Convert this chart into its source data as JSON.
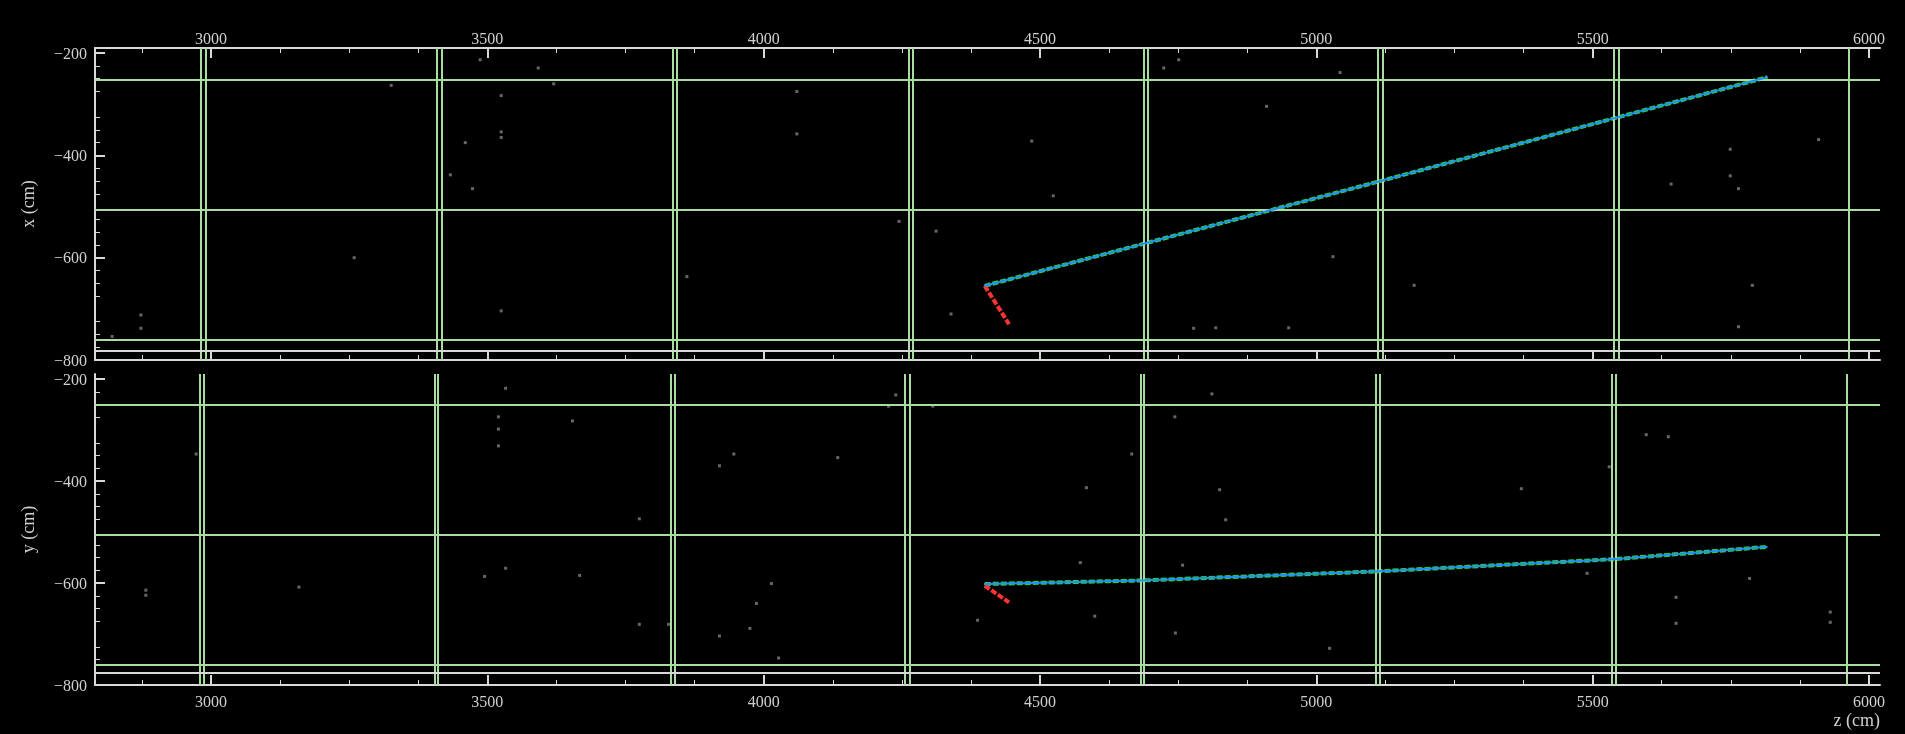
{
  "chart_data": [
    {
      "type": "line",
      "ylabel": "x (cm)",
      "xlim": [
        2790,
        6020
      ],
      "xticks": [
        3000,
        3500,
        4000,
        4500,
        5000,
        5500,
        6000
      ],
      "x2lim": [
        2790,
        6020
      ],
      "x2ticks": [
        3000,
        3500,
        4000,
        4500,
        5000,
        5500,
        6000
      ],
      "ylim": [
        -800,
        -190
      ],
      "yticks": [
        -200,
        -400,
        -600,
        -800
      ],
      "tick_labels": "y",
      "grid": false,
      "ref_lines": [
        {
          "axis": "x",
          "value": 2982,
          "color": "#a8dca0"
        },
        {
          "axis": "x",
          "value": 2991,
          "color": "#a8dca0"
        },
        {
          "axis": "x",
          "value": 3409,
          "color": "#a8dca0"
        },
        {
          "axis": "x",
          "value": 3417,
          "color": "#a8dca0"
        },
        {
          "axis": "x",
          "value": 3835,
          "color": "#a8dca0"
        },
        {
          "axis": "x",
          "value": 3843,
          "color": "#a8dca0"
        },
        {
          "axis": "x",
          "value": 4263,
          "color": "#a8dca0"
        },
        {
          "axis": "x",
          "value": 4269,
          "color": "#a8dca0"
        },
        {
          "axis": "x",
          "value": 4687,
          "color": "#a8dca0"
        },
        {
          "axis": "x",
          "value": 4695,
          "color": "#a8dca0"
        },
        {
          "axis": "x",
          "value": 5112,
          "color": "#a8dca0"
        },
        {
          "axis": "x",
          "value": 5120,
          "color": "#a8dca0"
        },
        {
          "axis": "x",
          "value": 5539,
          "color": "#a8dca0"
        },
        {
          "axis": "x",
          "value": 5547,
          "color": "#a8dca0"
        },
        {
          "axis": "x",
          "value": 5963,
          "color": "#a8dca0"
        },
        {
          "axis": "y",
          "value": -252,
          "color": "#a8dca0"
        },
        {
          "axis": "y",
          "value": -506,
          "color": "#a8dca0"
        },
        {
          "axis": "y",
          "value": -760,
          "color": "#a8dca0"
        },
        {
          "axis": "y",
          "value": -781,
          "color": "#d8d8d8"
        }
      ],
      "series": [
        {
          "type": "scatter",
          "color": "#808080",
          "marker": "square",
          "x": [
            2821,
            2873,
            2873,
            3326,
            3259,
            3487,
            3592,
            3620,
            3525,
            3525,
            3525,
            3460,
            3433,
            3473,
            3525,
            4060,
            4060,
            3861,
            4245,
            4312,
            4339,
            4485,
            4524,
            4724,
            4751,
            5043,
            4910,
            5030,
            5177,
            5749,
            5749,
            5764,
            5642,
            5909,
            5789,
            5764,
            4778,
            4818,
            4950
          ],
          "values": [
            -754,
            -712,
            -738,
            -263,
            -600,
            -213,
            -229,
            -260,
            -283,
            -354,
            -365,
            -375,
            -438,
            -465,
            -704,
            -275,
            -358,
            -637,
            -529,
            -548,
            -710,
            -372,
            -479,
            -229,
            -213,
            -238,
            -304,
            -598,
            -654,
            -388,
            -440,
            -465,
            -456,
            -369,
            -654,
            -735,
            -738,
            -737,
            -737
          ]
        },
        {
          "type": "line",
          "color": "#1e90ff",
          "line_style": "dotted",
          "marker": "none",
          "x": [
            4400,
            5113,
            5816
          ],
          "values": [
            -655,
            -451,
            -247
          ]
        },
        {
          "type": "line",
          "color": "#33cc33",
          "line_style": "dashed",
          "marker": "none",
          "x": [
            4400,
            5113,
            5816
          ],
          "values": [
            -655,
            -451,
            -247
          ]
        },
        {
          "type": "line",
          "color": "#ff3333",
          "line_style": "dashed",
          "marker": "none",
          "x": [
            4400,
            4444
          ],
          "values": [
            -655,
            -730
          ]
        }
      ]
    },
    {
      "type": "line",
      "xlabel": "z (cm)",
      "ylabel": "y (cm)",
      "xlim": [
        2790,
        6020
      ],
      "xticks": [
        3000,
        3500,
        4000,
        4500,
        5000,
        5500,
        6000
      ],
      "ylim": [
        -800,
        -190
      ],
      "yticks": [
        -200,
        -400,
        -600,
        -800
      ],
      "grid": false,
      "ref_lines": [
        {
          "axis": "x",
          "value": 2979,
          "color": "#a8dca0"
        },
        {
          "axis": "x",
          "value": 2986,
          "color": "#a8dca0"
        },
        {
          "axis": "x",
          "value": 3404,
          "color": "#a8dca0"
        },
        {
          "axis": "x",
          "value": 3411,
          "color": "#a8dca0"
        },
        {
          "axis": "x",
          "value": 3832,
          "color": "#a8dca0"
        },
        {
          "axis": "x",
          "value": 3839,
          "color": "#a8dca0"
        },
        {
          "axis": "x",
          "value": 4256,
          "color": "#a8dca0"
        },
        {
          "axis": "x",
          "value": 4264,
          "color": "#a8dca0"
        },
        {
          "axis": "x",
          "value": 4682,
          "color": "#a8dca0"
        },
        {
          "axis": "x",
          "value": 4688,
          "color": "#a8dca0"
        },
        {
          "axis": "x",
          "value": 5108,
          "color": "#a8dca0"
        },
        {
          "axis": "x",
          "value": 5115,
          "color": "#a8dca0"
        },
        {
          "axis": "x",
          "value": 5534,
          "color": "#a8dca0"
        },
        {
          "axis": "x",
          "value": 5541,
          "color": "#a8dca0"
        },
        {
          "axis": "x",
          "value": 5959,
          "color": "#a8dca0"
        },
        {
          "axis": "y",
          "value": -251,
          "color": "#a8dca0"
        },
        {
          "axis": "y",
          "value": -506,
          "color": "#a8dca0"
        },
        {
          "axis": "y",
          "value": -761,
          "color": "#a8dca0"
        },
        {
          "axis": "y",
          "value": -775,
          "color": "#d8d8d8"
        }
      ],
      "series": [
        {
          "type": "scatter",
          "color": "#808080",
          "marker": "square",
          "x": [
            2882,
            2882,
            3159,
            2973,
            3533,
            3520,
            3520,
            3520,
            3654,
            3775,
            3495,
            3533,
            3667,
            3775,
            3828,
            3920,
            3946,
            4134,
            4014,
            3987,
            3975,
            3920,
            4027,
            4239,
            4226,
            4306,
            4811,
            4744,
            4666,
            4584,
            4825,
            4836,
            4573,
            4758,
            4599,
            4387,
            4745,
            5024,
            5597,
            5637,
            5530,
            5371,
            5490,
            5651,
            5651,
            5784,
            5930,
            5930
          ],
          "values": [
            -614,
            -624,
            -608,
            -347,
            -218,
            -274,
            -298,
            -331,
            -282,
            -474,
            -587,
            -571,
            -585,
            -681,
            -681,
            -370,
            -347,
            -354,
            -601,
            -640,
            -689,
            -704,
            -747,
            -231,
            -253,
            -253,
            -229,
            -274,
            -347,
            -413,
            -417,
            -476,
            -560,
            -565,
            -665,
            -673,
            -698,
            -728,
            -309,
            -313,
            -372,
            -415,
            -581,
            -628,
            -679,
            -591,
            -657,
            -677
          ]
        },
        {
          "type": "line",
          "color": "#1e90ff",
          "line_style": "dotted",
          "marker": "none",
          "x": [
            4400,
            4684,
            5113,
            5542,
            5816
          ],
          "values": [
            -602,
            -595,
            -577,
            -553,
            -529
          ]
        },
        {
          "type": "line",
          "color": "#33cc33",
          "line_style": "dashed",
          "marker": "none",
          "x": [
            4400,
            4684,
            5113,
            5542,
            5816
          ],
          "values": [
            -602,
            -595,
            -577,
            -553,
            -529
          ]
        },
        {
          "type": "line",
          "color": "#ff3333",
          "line_style": "dashed",
          "marker": "none",
          "x": [
            4400,
            4444
          ],
          "values": [
            -605,
            -638
          ]
        }
      ]
    }
  ]
}
